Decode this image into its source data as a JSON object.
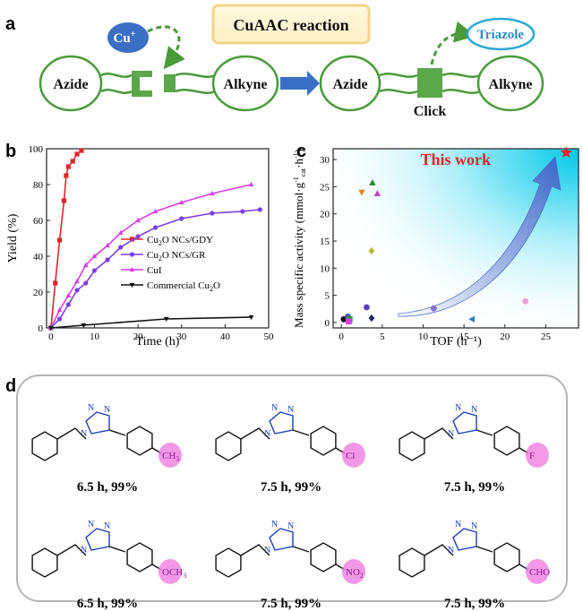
{
  "panel_a": {
    "letter": "a",
    "title": "CuAAC reaction",
    "catalyst": "Cu",
    "catalyst_sup": "+",
    "left_azide": "Azide",
    "left_alkyne": "Alkyne",
    "right_azide": "Azide",
    "right_alkyne": "Alkyne",
    "product": "Triazole",
    "click": "Click"
  },
  "panel_b": {
    "letter": "b"
  },
  "panel_c": {
    "letter": "c",
    "this_work": "This work"
  },
  "panel_d": {
    "letter": "d",
    "substituents": [
      {
        "text": "CH",
        "sub": "3",
        "caption": "6.5 h, 99%"
      },
      {
        "text": "Cl",
        "sub": "",
        "caption": "7.5 h, 99%"
      },
      {
        "text": "F",
        "sub": "",
        "caption": "7.5 h, 99%"
      },
      {
        "text": "OCH",
        "sub": "3",
        "caption": "6.5 h, 99%"
      },
      {
        "text": "NO",
        "sub": "2",
        "caption": "7.5 h, 99%"
      },
      {
        "text": "CHO",
        "sub": "",
        "caption": "7.5 h, 99%"
      }
    ]
  },
  "chart_data": [
    {
      "type": "line",
      "xlabel": "Time (h)",
      "ylabel": "Yield (%)",
      "xlim": [
        -1,
        50
      ],
      "ylim": [
        0,
        100
      ],
      "xticks": [
        0,
        10,
        20,
        30,
        40,
        50
      ],
      "yticks": [
        0,
        20,
        40,
        60,
        80,
        100
      ],
      "legend_position": "middle-right",
      "series": [
        {
          "name": "Cu2O NCs/GDY",
          "label_parts": [
            "Cu",
            "2",
            "O NCs/GDY"
          ],
          "color": "#e0262b",
          "marker": "square",
          "x": [
            0,
            1,
            2,
            3,
            3.5,
            4,
            5,
            6,
            7
          ],
          "y": [
            0,
            25,
            49,
            71,
            85,
            90,
            93,
            97,
            99
          ]
        },
        {
          "name": "Cu2O NCs/GR",
          "label_parts": [
            "Cu",
            "2",
            "O NCs/GR"
          ],
          "color": "#7c3fe0",
          "marker": "circle",
          "x": [
            0,
            2,
            4,
            6,
            8,
            10,
            13,
            16,
            20,
            24,
            30,
            37,
            44,
            48
          ],
          "y": [
            0,
            5,
            13,
            21,
            25,
            32,
            38,
            45,
            51,
            56,
            61,
            64,
            65,
            66
          ]
        },
        {
          "name": "CuI",
          "label_parts": [
            "CuI",
            "",
            ""
          ],
          "color": "#d63fe0",
          "marker": "triangle",
          "x": [
            0,
            2,
            4,
            6,
            8,
            10,
            13,
            16,
            20,
            24,
            30,
            37,
            46
          ],
          "y": [
            0,
            10,
            18,
            26,
            35,
            40,
            46,
            53,
            60,
            65,
            70,
            75,
            80
          ]
        },
        {
          "name": "Commercial Cu2O",
          "label_parts": [
            "Commercial Cu",
            "2",
            "O"
          ],
          "color": "#111111",
          "marker": "triangle-down",
          "x": [
            0,
            7.5,
            26.5,
            46
          ],
          "y": [
            0,
            1.5,
            5,
            6
          ]
        }
      ]
    },
    {
      "type": "scatter",
      "xlabel": "TOF (h⁻¹)",
      "ylabel": "Mass specific activity (mmol·g⁻¹cat·h⁻¹)",
      "ylabel_parts": {
        "main": "Mass specific activity (mmol·g",
        "sup1": "-1",
        "sub": "cat",
        "mid": "·h",
        "sup2": "-1",
        "end": ")"
      },
      "xlim": [
        -1,
        29
      ],
      "ylim": [
        -1,
        32
      ],
      "xticks": [
        0,
        5,
        10,
        15,
        20,
        25
      ],
      "yticks": [
        0,
        5,
        10,
        15,
        20,
        25,
        30
      ],
      "points": [
        {
          "x": 27.5,
          "y": 31.3,
          "marker": "star",
          "color": "#e0262b",
          "label": "This work"
        },
        {
          "x": 3.8,
          "y": 25.7,
          "marker": "triangle",
          "color": "#2a8a2a"
        },
        {
          "x": 2.5,
          "y": 24.0,
          "marker": "triangle-down",
          "color": "#e08a20"
        },
        {
          "x": 4.4,
          "y": 23.7,
          "marker": "triangle",
          "color": "#c03fc0"
        },
        {
          "x": 3.7,
          "y": 13.2,
          "marker": "diamond",
          "color": "#b8b82a"
        },
        {
          "x": 3.1,
          "y": 2.8,
          "marker": "circle",
          "color": "#5a3fc0"
        },
        {
          "x": 0.3,
          "y": 0.6,
          "marker": "circle",
          "color": "#111111"
        },
        {
          "x": 0.8,
          "y": 1.1,
          "marker": "circle",
          "color": "#3f5ac0"
        },
        {
          "x": 1.0,
          "y": 0.6,
          "marker": "square",
          "color": "#2aa02a"
        },
        {
          "x": 0.9,
          "y": 0.2,
          "marker": "square",
          "color": "#d63fe0"
        },
        {
          "x": 3.7,
          "y": 0.8,
          "marker": "diamond",
          "color": "#222266"
        },
        {
          "x": 11.3,
          "y": 2.6,
          "marker": "circle",
          "color": "#8a70d0"
        },
        {
          "x": 16.0,
          "y": 0.6,
          "marker": "triangle-left",
          "color": "#2a80c0"
        },
        {
          "x": 22.5,
          "y": 3.9,
          "marker": "circle",
          "color": "#f0a0d0"
        }
      ]
    }
  ]
}
